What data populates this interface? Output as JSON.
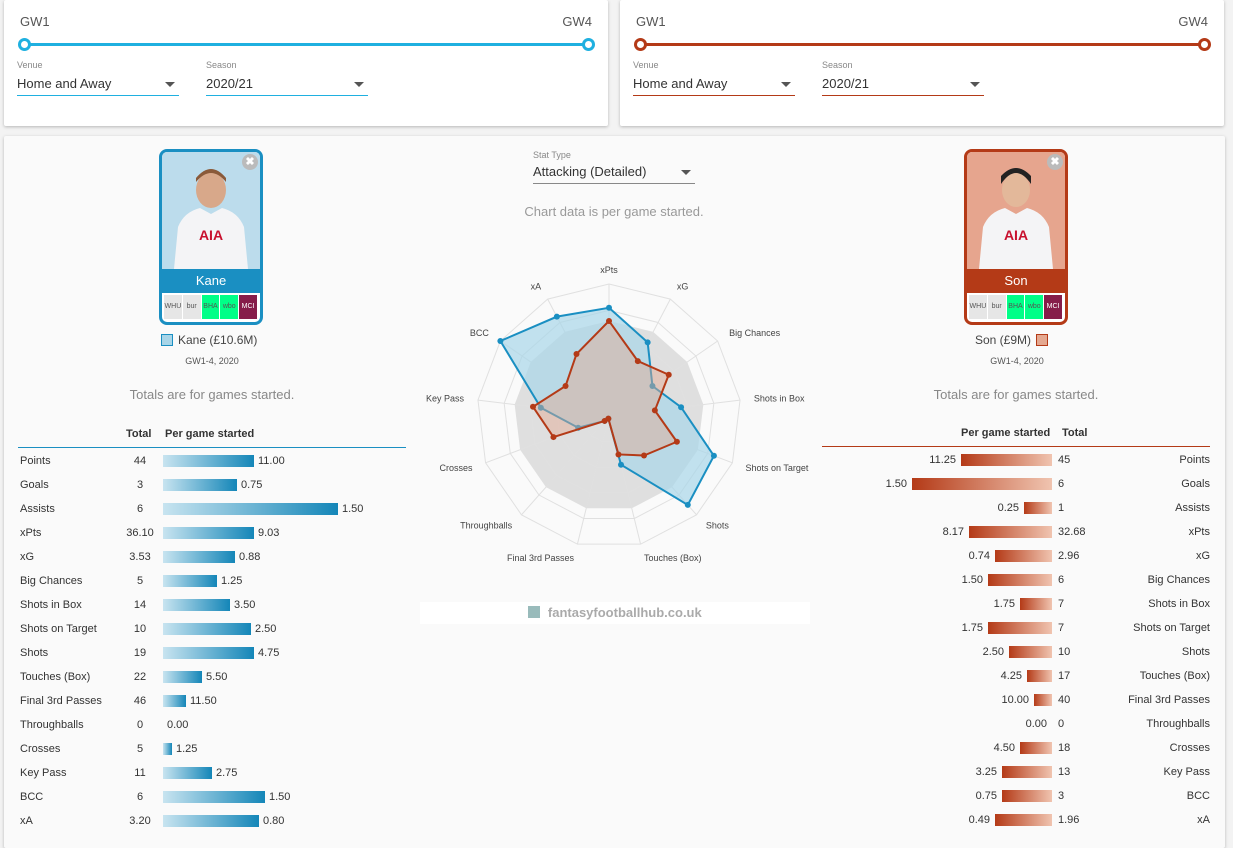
{
  "left_filter": {
    "gw_start": "GW1",
    "gw_end": "GW4",
    "venue_label": "Venue",
    "venue_value": "Home and Away",
    "season_label": "Season",
    "season_value": "2020/21",
    "accent": "#1fb0e0"
  },
  "right_filter": {
    "gw_start": "GW1",
    "gw_end": "GW4",
    "venue_label": "Venue",
    "venue_value": "Home and Away",
    "season_label": "Season",
    "season_value": "2020/21",
    "accent": "#b43a17"
  },
  "stat_type": {
    "label": "Stat Type",
    "value": "Attacking (Detailed)"
  },
  "chart_note": "Chart data is per game started.",
  "watermark": "fantasyfootballhub.co.uk",
  "players": {
    "left": {
      "name": "Kane",
      "legend": "Kane (£10.6M)",
      "range": "GW1-4, 2020",
      "totals_note": "Totals are for games started.",
      "fixtures": [
        "WHU",
        "bur",
        "BHA",
        "wbo",
        "MCI"
      ],
      "color": "#1a8fc2",
      "fill": "#a8d5e8"
    },
    "right": {
      "name": "Son",
      "legend": "Son (£9M)",
      "range": "GW1-4, 2020",
      "totals_note": "Totals are for games started.",
      "fixtures": [
        "WHU",
        "bur",
        "BHA",
        "wbo",
        "MCI"
      ],
      "color": "#b43a17",
      "fill": "#e4a890"
    }
  },
  "table": {
    "total_header": "Total",
    "per_game_header": "Per game started",
    "stats": [
      "Points",
      "Goals",
      "Assists",
      "xPts",
      "xG",
      "Big Chances",
      "Shots in Box",
      "Shots on Target",
      "Shots",
      "Touches (Box)",
      "Final 3rd Passes",
      "Throughballs",
      "Crosses",
      "Key Pass",
      "BCC",
      "xA"
    ],
    "left_totals": [
      "44",
      "3",
      "6",
      "36.10",
      "3.53",
      "5",
      "14",
      "10",
      "19",
      "22",
      "46",
      "0",
      "5",
      "11",
      "6",
      "3.20"
    ],
    "left_per_game": [
      "11.00",
      "0.75",
      "1.50",
      "9.03",
      "0.88",
      "1.25",
      "3.50",
      "2.50",
      "4.75",
      "5.50",
      "11.50",
      "0.00",
      "1.25",
      "2.75",
      "1.50",
      "0.80"
    ],
    "left_bar_fraction": [
      0.52,
      0.42,
      1.0,
      0.52,
      0.41,
      0.31,
      0.38,
      0.5,
      0.52,
      0.22,
      0.13,
      0.0,
      0.05,
      0.28,
      0.58,
      0.55
    ],
    "right_totals": [
      "45",
      "6",
      "1",
      "32.68",
      "2.96",
      "6",
      "7",
      "7",
      "10",
      "17",
      "40",
      "0",
      "18",
      "13",
      "3",
      "1.96"
    ],
    "right_per_game": [
      "11.25",
      "1.50",
      "0.25",
      "8.17",
      "0.74",
      "1.50",
      "1.75",
      "1.75",
      "2.50",
      "4.25",
      "10.00",
      "0.00",
      "4.50",
      "3.25",
      "0.75",
      "0.49"
    ],
    "right_bar_fraction": [
      0.65,
      1.0,
      0.2,
      0.59,
      0.41,
      0.46,
      0.23,
      0.46,
      0.31,
      0.18,
      0.13,
      0.0,
      0.23,
      0.36,
      0.36,
      0.41
    ]
  },
  "chart_data": {
    "type": "radar",
    "axes": [
      "xPts",
      "xG",
      "Big Chances",
      "Shots in Box",
      "Shots on Target",
      "Shots",
      "Touches (Box)",
      "Final 3rd Passes",
      "Throughballs",
      "Crosses",
      "Key Pass",
      "BCC",
      "xA"
    ],
    "series": [
      {
        "name": "Kane (£10.6M)",
        "values": [
          0.82,
          0.63,
          0.4,
          0.55,
          0.85,
          0.9,
          0.38,
          0.02,
          0.05,
          0.25,
          0.52,
          1.0,
          0.85
        ]
      },
      {
        "name": "Son (£9M)",
        "values": [
          0.72,
          0.47,
          0.55,
          0.35,
          0.55,
          0.4,
          0.3,
          0.02,
          0.05,
          0.45,
          0.58,
          0.4,
          0.53
        ]
      }
    ],
    "background_ring": 0.72,
    "range": [
      0,
      1
    ],
    "rings": 5
  }
}
